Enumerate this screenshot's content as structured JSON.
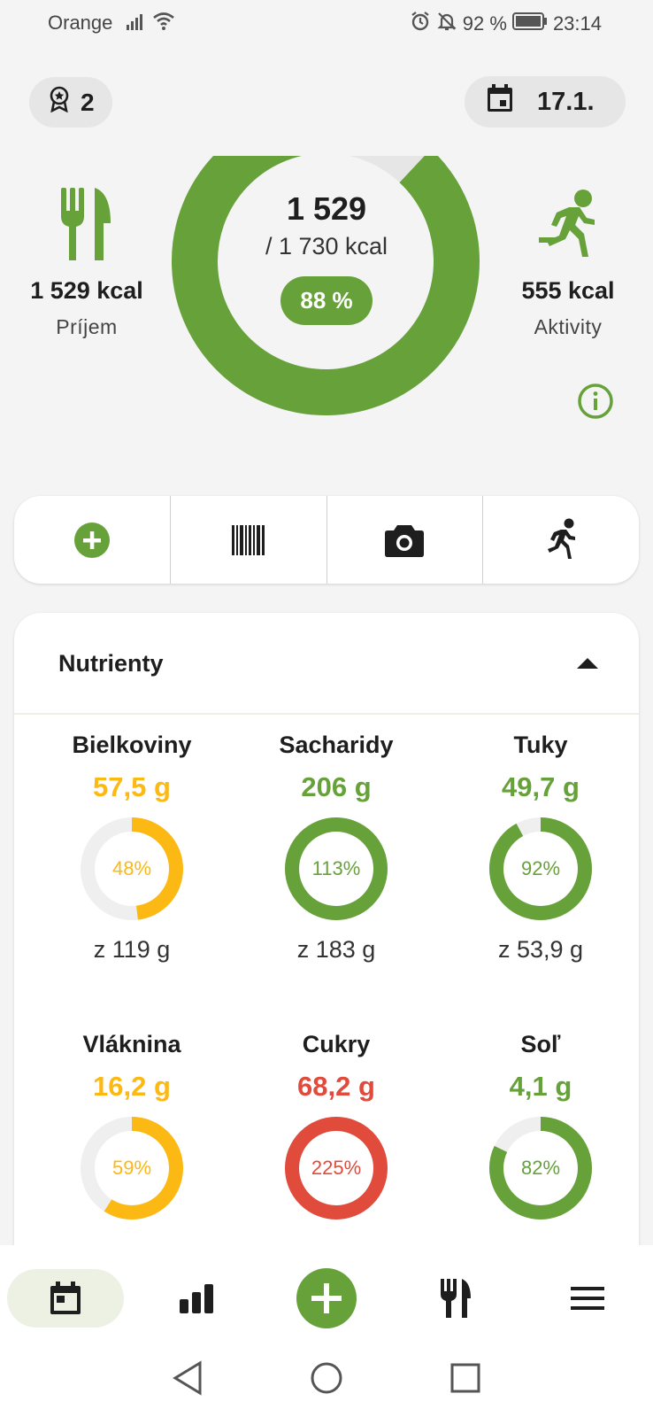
{
  "status_bar": {
    "carrier": "Orange",
    "battery_percent": "92 %",
    "time": "23:14",
    "icons": [
      "signal-icon",
      "wifi-icon",
      "alarm-icon",
      "notifications-off-icon",
      "battery-icon"
    ]
  },
  "header": {
    "badge_count": "2",
    "date": "17.1."
  },
  "summary": {
    "intake_kcal": "1 529 kcal",
    "intake_label": "Príjem",
    "consumed": "1 529",
    "goal": "/ 1 730 kcal",
    "percent_label": "88 %",
    "progress_fraction": 0.88,
    "activity_kcal": "555 kcal",
    "activity_label": "Aktivity"
  },
  "quick_actions": [
    "add-icon",
    "barcode-icon",
    "camera-icon",
    "run-icon"
  ],
  "nutrients": {
    "title": "Nutrienty",
    "items": [
      {
        "name": "Bielkoviny",
        "value": "57,5 g",
        "percent": "48%",
        "fraction": 0.48,
        "total": "z 119 g",
        "color": "#fcb813"
      },
      {
        "name": "Sacharidy",
        "value": "206 g",
        "percent": "113%",
        "fraction": 1.13,
        "total": "z 183 g",
        "color": "#67a13a"
      },
      {
        "name": "Tuky",
        "value": "49,7 g",
        "percent": "92%",
        "fraction": 0.92,
        "total": "z 53,9 g",
        "color": "#67a13a"
      },
      {
        "name": "Vláknina",
        "value": "16,2 g",
        "percent": "59%",
        "fraction": 0.59,
        "total": "",
        "color": "#fcb813"
      },
      {
        "name": "Cukry",
        "value": "68,2 g",
        "percent": "225%",
        "fraction": 2.25,
        "total": "",
        "color": "#e04b3c"
      },
      {
        "name": "Soľ",
        "value": "4,1 g",
        "percent": "82%",
        "fraction": 0.82,
        "total": "",
        "color": "#67a13a"
      }
    ]
  },
  "bottom_nav": [
    "calendar-icon",
    "stats-icon",
    "add-icon",
    "food-icon",
    "menu-icon"
  ],
  "colors": {
    "accent_green": "#67a13a",
    "warning_yellow": "#fcb813",
    "over_red": "#e04b3c",
    "background": "#f4f4f4"
  }
}
